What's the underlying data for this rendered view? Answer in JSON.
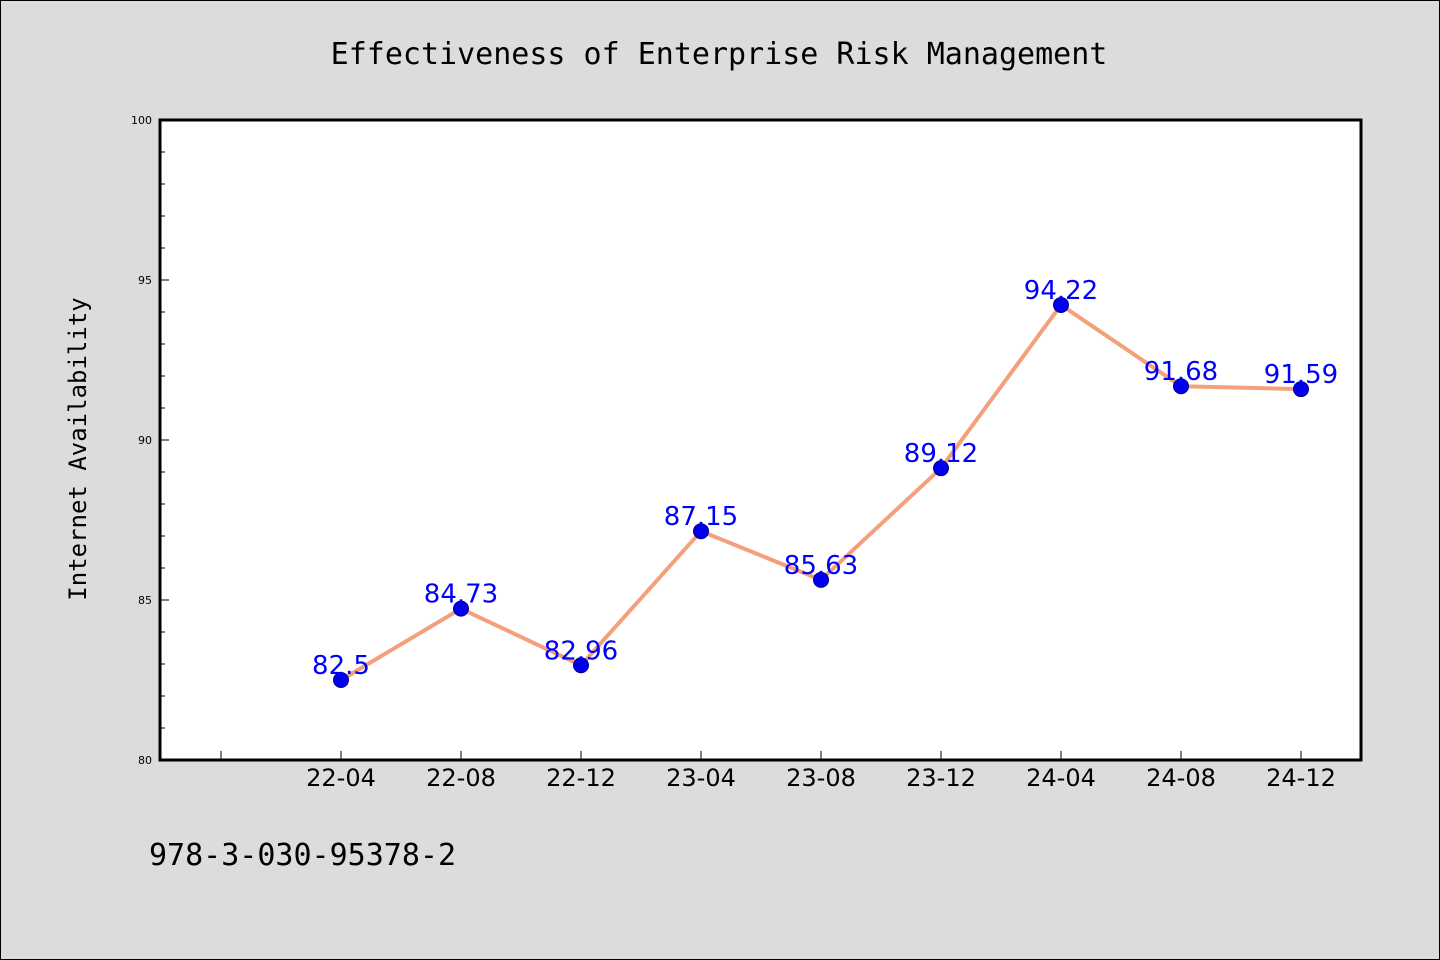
{
  "chart_data": {
    "type": "line",
    "title": "Effectiveness of Enterprise Risk Management",
    "xlabel": "",
    "ylabel": "Internet Availability",
    "categories": [
      "22-04",
      "22-08",
      "22-12",
      "23-04",
      "23-08",
      "23-12",
      "24-04",
      "24-08",
      "24-12"
    ],
    "series": [
      {
        "values": [
          82.5,
          84.73,
          82.96,
          87.15,
          85.63,
          89.12,
          94.22,
          91.68,
          91.59
        ],
        "data_labels": [
          "82.5",
          "84.73",
          "82.96",
          "87.15",
          "85.63",
          "89.12",
          "94.22",
          "91.68",
          "91.59"
        ],
        "line_color": "#f4a07c",
        "marker_color": "#0000ee",
        "label_color": "#0000ff"
      }
    ],
    "ylim": [
      80,
      100
    ],
    "yticks": [
      "80",
      "85",
      "90",
      "95",
      "100"
    ],
    "grid": false,
    "legend": "none"
  },
  "footer": {
    "text": "978-3-030-95378-2"
  }
}
